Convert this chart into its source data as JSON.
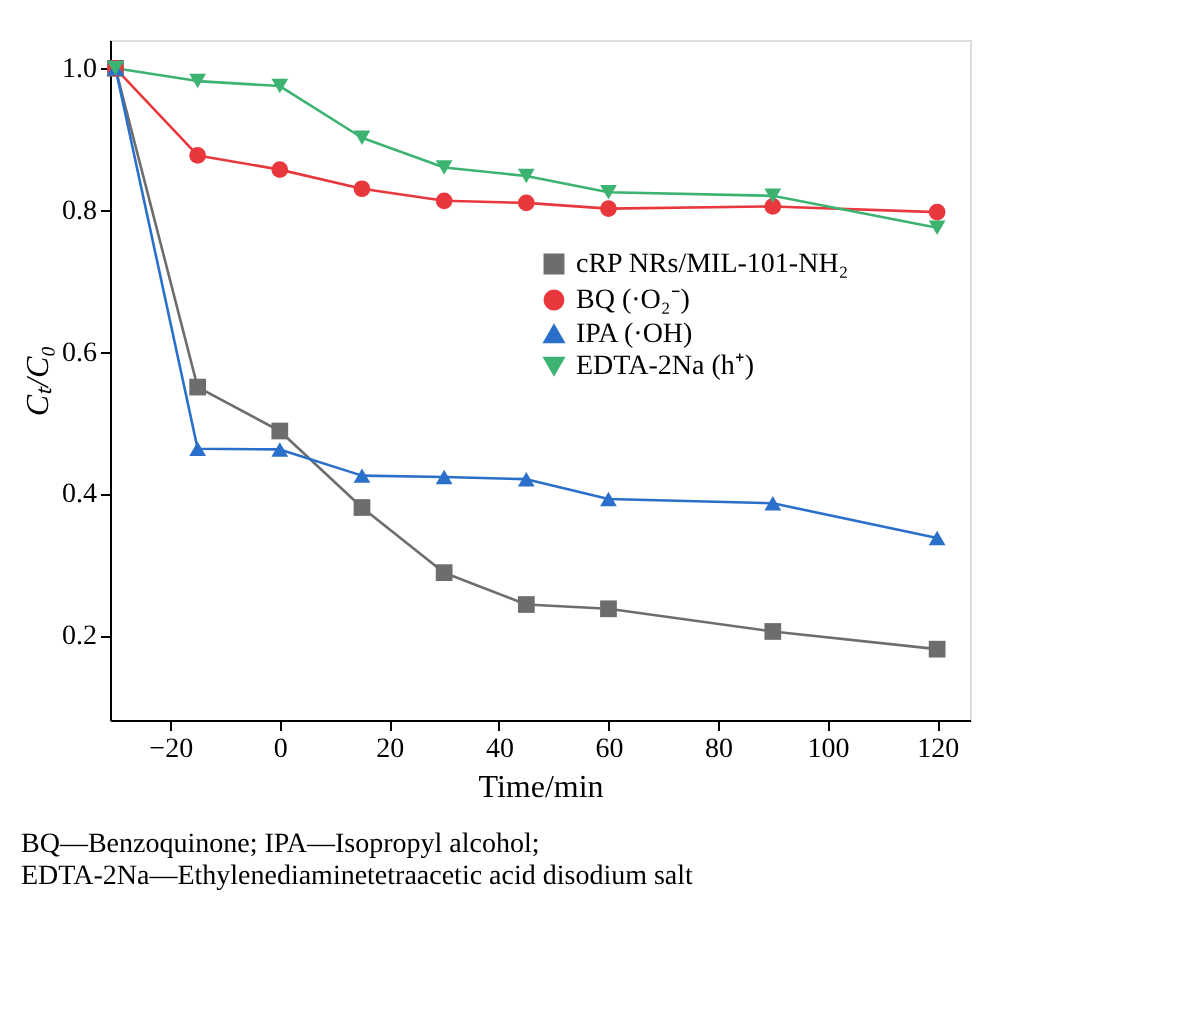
{
  "chart_data": {
    "type": "line",
    "xlabel": "Time/min",
    "ylabel": "Cₜ/C₀",
    "x": [
      -30,
      -15,
      0,
      15,
      30,
      45,
      60,
      90,
      120
    ],
    "series": [
      {
        "name": "cRP NRs/MIL-101-NH₂",
        "color": "#6d6d6d",
        "marker": "square",
        "values": [
          1.0,
          0.55,
          0.488,
          0.38,
          0.288,
          0.243,
          0.237,
          0.205,
          0.18
        ]
      },
      {
        "name": "BQ (·O₂⁻)",
        "color": "#e8383d",
        "marker": "circle",
        "values": [
          1.0,
          0.877,
          0.857,
          0.83,
          0.813,
          0.81,
          0.802,
          0.805,
          0.797
        ]
      },
      {
        "name": "IPA (·OH)",
        "color": "#2a6fc9",
        "marker": "triangle",
        "values": [
          1.0,
          0.463,
          0.462,
          0.425,
          0.423,
          0.42,
          0.392,
          0.386,
          0.337
        ]
      },
      {
        "name": "EDTA-2Na (h⁺)",
        "color": "#3cb371",
        "marker": "triangle-down",
        "values": [
          1.0,
          0.982,
          0.975,
          0.902,
          0.86,
          0.848,
          0.825,
          0.82,
          0.775
        ]
      }
    ],
    "xlim": [
      -31,
      126
    ],
    "ylim": [
      0.08,
      1.04
    ],
    "xticks": [
      -20,
      0,
      20,
      40,
      60,
      80,
      100,
      120
    ],
    "yticks": [
      0.2,
      0.4,
      0.6,
      0.8,
      {
        "value": 1,
        "label": "1.0"
      }
    ],
    "grid": false,
    "legend": "right",
    "line_style": "solid",
    "annotations": [
      "BQ—Benzoquinone; IPA—Isopropyl alcohol; EDTA-2Na—Ethylenediaminetetraacetic acid disodium salt"
    ]
  }
}
